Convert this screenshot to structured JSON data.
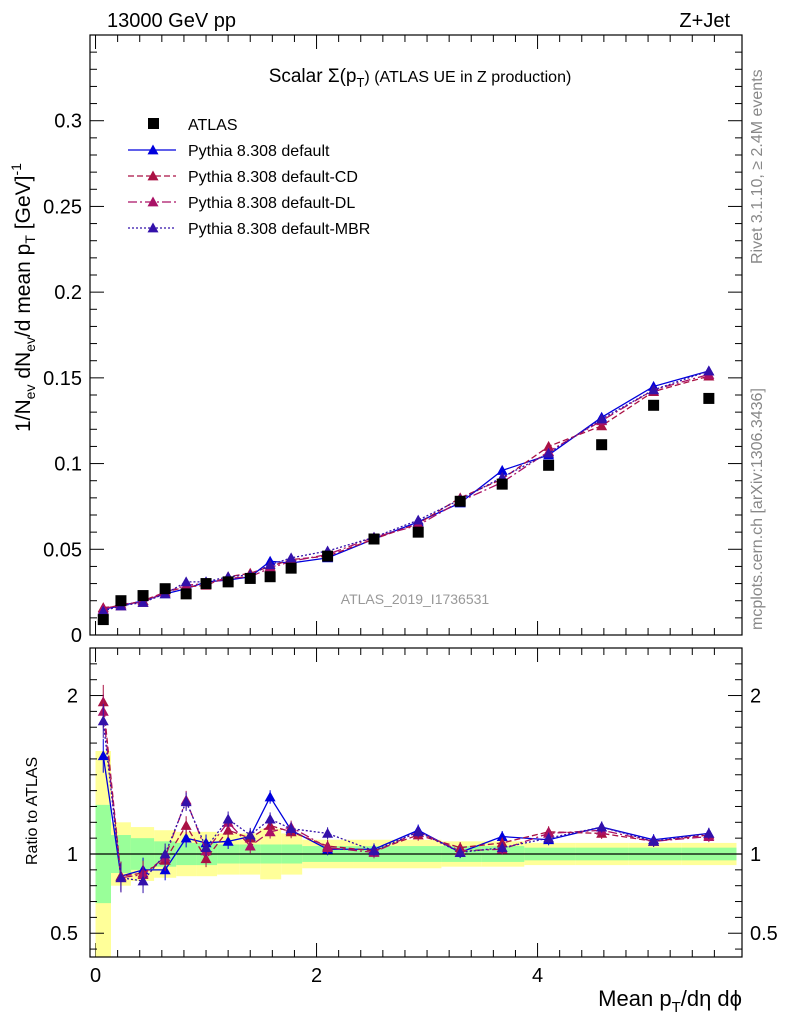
{
  "header": {
    "left": "13000 GeV pp",
    "right": "Z+Jet"
  },
  "side_labels": {
    "rivet": "Rivet 3.1.10, ≥ 2.4M events",
    "mcplots": "mcplots.cern.ch [arXiv:1306.3436]"
  },
  "watermark": "ATLAS_2019_I1736531",
  "chart_data": {
    "type": "scatter",
    "title_main": "Scalar Σ(p",
    "title_sub": "T",
    "title_rest": ") (ATLAS UE in Z production)",
    "ylabel_parts": [
      "1/N",
      "ev",
      " dN",
      "ev",
      "/d mean p",
      "T",
      " [GeV]",
      "-1"
    ],
    "xlabel_parts": [
      "Mean p",
      "T",
      "/dη dϕ"
    ],
    "ratio_ylabel": "Ratio to ATLAS",
    "xlim": [
      -0.05,
      5.85
    ],
    "ylim": [
      0,
      0.35
    ],
    "ratio_ylim": [
      0.35,
      2.3
    ],
    "x_ticks": [
      {
        "v": 0,
        "label": "0"
      },
      {
        "v": 2,
        "label": "2"
      },
      {
        "v": 4,
        "label": "4"
      }
    ],
    "y_ticks": [
      {
        "v": 0,
        "label": "0"
      },
      {
        "v": 0.05,
        "label": "0.05"
      },
      {
        "v": 0.1,
        "label": "0.1"
      },
      {
        "v": 0.15,
        "label": "0.15"
      },
      {
        "v": 0.2,
        "label": "0.2"
      },
      {
        "v": 0.25,
        "label": "0.25"
      },
      {
        "v": 0.3,
        "label": "0.3"
      }
    ],
    "ratio_ticks": [
      {
        "v": 0.5,
        "label": "0.5"
      },
      {
        "v": 1,
        "label": "1"
      },
      {
        "v": 2,
        "label": "2"
      }
    ],
    "x": [
      0.07,
      0.23,
      0.43,
      0.63,
      0.82,
      1.0,
      1.2,
      1.4,
      1.58,
      1.77,
      2.1,
      2.52,
      2.92,
      3.3,
      3.68,
      4.1,
      4.58,
      5.05,
      5.55
    ],
    "atlas": [
      0.009,
      0.02,
      0.023,
      0.027,
      0.024,
      0.03,
      0.031,
      0.033,
      0.034,
      0.039,
      0.046,
      0.056,
      0.06,
      0.078,
      0.088,
      0.099,
      0.111,
      0.134,
      0.138
    ],
    "series": [
      {
        "name": "ATLAS",
        "color": "#000000",
        "marker": "square"
      },
      {
        "name": "Pythia 8.308 default",
        "color": "#0000dd",
        "dash": "",
        "values": [
          0.015,
          0.017,
          0.02,
          0.024,
          0.027,
          0.031,
          0.032,
          0.034,
          0.043,
          0.042,
          0.045,
          0.056,
          0.066,
          0.077,
          0.096,
          0.105,
          0.127,
          0.145,
          0.154
        ],
        "ratio": [
          1.62,
          0.86,
          0.9,
          0.9,
          1.1,
          1.07,
          1.08,
          1.11,
          1.36,
          1.15,
          1.03,
          1.03,
          1.15,
          1.01,
          1.11,
          1.09,
          1.17,
          1.09,
          1.13
        ]
      },
      {
        "name": "Pythia 8.308 default-CD",
        "color": "#aa1144",
        "dash": "6,3",
        "values": [
          0.016,
          0.017,
          0.02,
          0.025,
          0.028,
          0.029,
          0.034,
          0.036,
          0.04,
          0.044,
          0.046,
          0.056,
          0.065,
          0.08,
          0.091,
          0.11,
          0.122,
          0.142,
          0.151
        ],
        "ratio": [
          1.96,
          0.86,
          0.88,
          0.96,
          1.18,
          0.97,
          1.15,
          1.1,
          1.18,
          1.14,
          1.05,
          1.02,
          1.12,
          1.04,
          1.07,
          1.14,
          1.13,
          1.08,
          1.12
        ]
      },
      {
        "name": "Pythia 8.308 default-DL",
        "color": "#aa1166",
        "dash": "9,3,2,3",
        "values": [
          0.015,
          0.018,
          0.019,
          0.025,
          0.029,
          0.03,
          0.033,
          0.034,
          0.039,
          0.043,
          0.047,
          0.057,
          0.064,
          0.078,
          0.089,
          0.107,
          0.125,
          0.143,
          0.152
        ],
        "ratio": [
          1.9,
          0.85,
          0.87,
          0.98,
          1.34,
          1.02,
          1.2,
          1.05,
          1.14,
          1.17,
          1.04,
          1.01,
          1.14,
          1.02,
          1.03,
          1.13,
          1.15,
          1.08,
          1.11
        ]
      },
      {
        "name": "Pythia 8.308 default-MBR",
        "color": "#3311aa",
        "dash": "2,2",
        "values": [
          0.014,
          0.017,
          0.019,
          0.024,
          0.031,
          0.031,
          0.034,
          0.035,
          0.041,
          0.045,
          0.049,
          0.057,
          0.067,
          0.079,
          0.092,
          0.106,
          0.126,
          0.143,
          0.154
        ],
        "ratio": [
          1.84,
          0.85,
          0.83,
          1.0,
          1.33,
          1.04,
          1.22,
          1.12,
          1.22,
          1.16,
          1.13,
          1.02,
          1.14,
          1.01,
          1.04,
          1.1,
          1.17,
          1.08,
          1.13
        ]
      }
    ],
    "band_edges": [
      0.0,
      0.14,
      0.32,
      0.53,
      0.73,
      0.91,
      1.1,
      1.3,
      1.49,
      1.68,
      1.87,
      2.33,
      2.71,
      3.13,
      3.49,
      3.88,
      4.34,
      4.82,
      5.3,
      5.8
    ],
    "band_inner": [
      0.31,
      0.12,
      0.1,
      0.08,
      0.07,
      0.07,
      0.06,
      0.06,
      0.06,
      0.06,
      0.05,
      0.05,
      0.05,
      0.05,
      0.05,
      0.04,
      0.04,
      0.04,
      0.04
    ],
    "band_outer": [
      0.65,
      0.2,
      0.17,
      0.15,
      0.14,
      0.14,
      0.13,
      0.13,
      0.16,
      0.13,
      0.09,
      0.09,
      0.09,
      0.08,
      0.08,
      0.07,
      0.07,
      0.07,
      0.07
    ]
  }
}
